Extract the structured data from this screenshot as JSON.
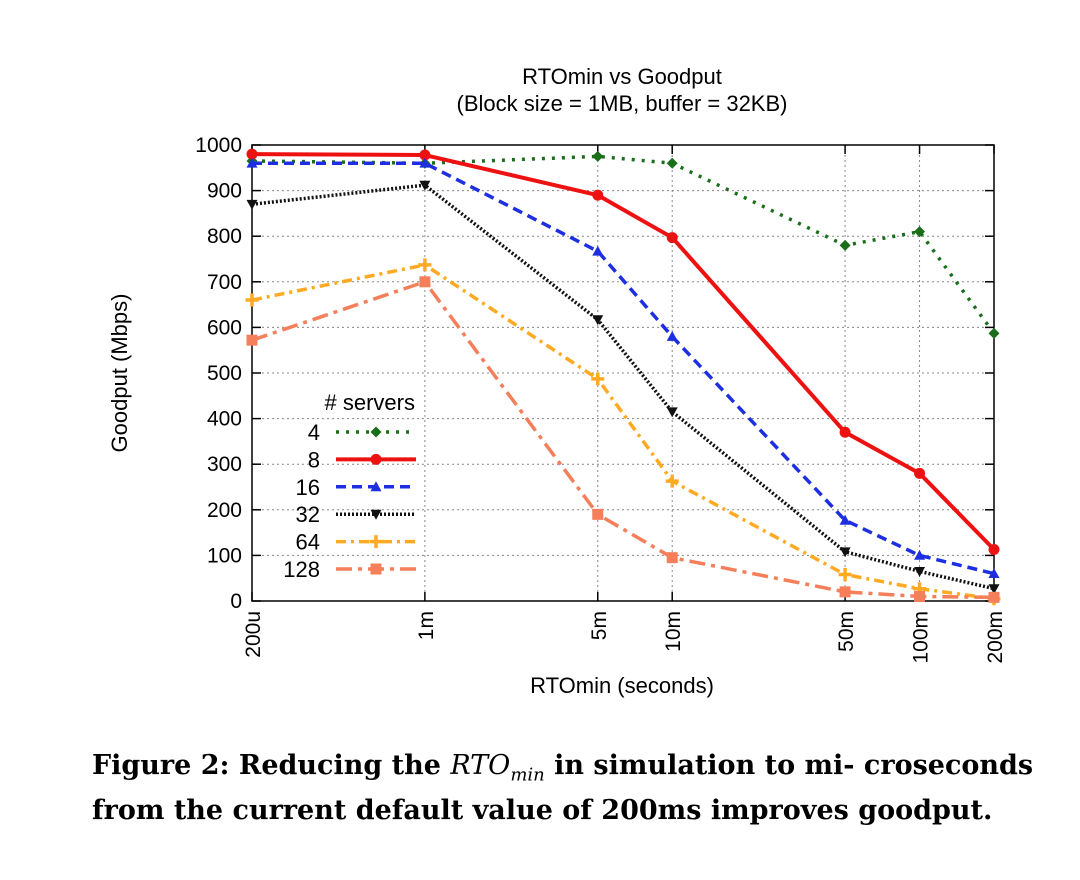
{
  "chart_data": {
    "type": "line",
    "title": "RTOmin vs Goodput",
    "subtitle": "(Block size = 1MB, buffer = 32KB)",
    "xlabel": "RTOmin (seconds)",
    "ylabel": "Goodput (Mbps)",
    "x_scale": "log",
    "x": [
      "200u",
      "1m",
      "5m",
      "10m",
      "50m",
      "100m",
      "200m"
    ],
    "x_values": [
      0.0002,
      0.001,
      0.005,
      0.01,
      0.05,
      0.1,
      0.2
    ],
    "ylim": [
      0,
      1000
    ],
    "yticks": [
      "0",
      "100",
      "200",
      "300",
      "400",
      "500",
      "600",
      "700",
      "800",
      "900",
      "1000"
    ],
    "ytick_values": [
      0,
      100,
      200,
      300,
      400,
      500,
      600,
      700,
      800,
      900,
      1000
    ],
    "grid": true,
    "legend_title": "# servers",
    "legend_position": "left",
    "series": [
      {
        "name": "4",
        "color": "#1a6e1a",
        "marker": "diamond",
        "dash": "3,7",
        "values": [
          965,
          960,
          975,
          960,
          780,
          810,
          587
        ]
      },
      {
        "name": "8",
        "color": "#ee1111",
        "marker": "circle",
        "dash": "",
        "values": [
          980,
          978,
          890,
          797,
          370,
          280,
          113
        ]
      },
      {
        "name": "16",
        "color": "#1d2fe0",
        "marker": "triangle",
        "dash": "10,6",
        "values": [
          960,
          960,
          767,
          580,
          177,
          100,
          60
        ]
      },
      {
        "name": "32",
        "color": "#111111",
        "marker": "triangle-down",
        "dash": "2,2",
        "values": [
          870,
          912,
          617,
          415,
          108,
          65,
          27
        ]
      },
      {
        "name": "64",
        "color": "#ffaa22",
        "marker": "plus",
        "dash": "10,5,3,5",
        "values": [
          660,
          737,
          487,
          263,
          58,
          27,
          5
        ]
      },
      {
        "name": "128",
        "color": "#f47f5a",
        "marker": "square",
        "dash": "16,6,4,6",
        "values": [
          572,
          700,
          190,
          95,
          20,
          10,
          8
        ]
      }
    ]
  },
  "caption": {
    "prefix": "Figure 2: Reducing the ",
    "math": "RTO",
    "math_sub": "min",
    "suffix": " in simulation to mi- croseconds from the current default value of 200ms improves goodput."
  }
}
